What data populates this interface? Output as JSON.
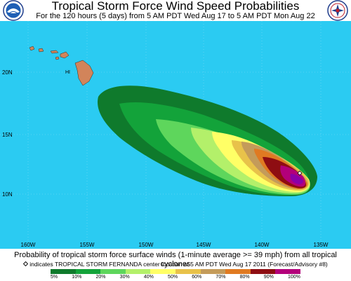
{
  "header": {
    "title": "Tropical Storm Force Wind Speed Probabilities",
    "subtitle": "For the 120 hours (5 days) from 5 AM PDT Wed Aug 17 to 5 AM PDT Mon Aug 22"
  },
  "logos": {
    "left": "noaa-logo",
    "right": "nws-logo"
  },
  "map": {
    "ocean_color": "#2bcbf2",
    "land_color": "#d2845a",
    "island_label": "HI",
    "lat_labels": [
      "20N",
      "15N",
      "10N"
    ],
    "lon_labels": [
      "160W",
      "155W",
      "150W",
      "145W",
      "140W",
      "135W"
    ],
    "storm_center_marker": "diamond-marker"
  },
  "footer": {
    "line1": "Probability of tropical storm force surface winds (1-minute average >= 39 mph) from all tropical cyclones",
    "line2": "indicates TROPICAL STORM FERNANDA center location at 5 AM PDT Wed Aug 17 2011 (Forecast/Advisory #8)"
  },
  "legend": {
    "labels": [
      "5%",
      "10%",
      "20%",
      "30%",
      "40%",
      "50%",
      "60%",
      "70%",
      "80%",
      "90%",
      "100%"
    ],
    "colors": [
      "#0f7a2c",
      "#13a33a",
      "#5ed65c",
      "#b3f06a",
      "#ffff66",
      "#e8c24a",
      "#c49b5a",
      "#e07a22",
      "#8e0d12",
      "#b3007a"
    ]
  }
}
